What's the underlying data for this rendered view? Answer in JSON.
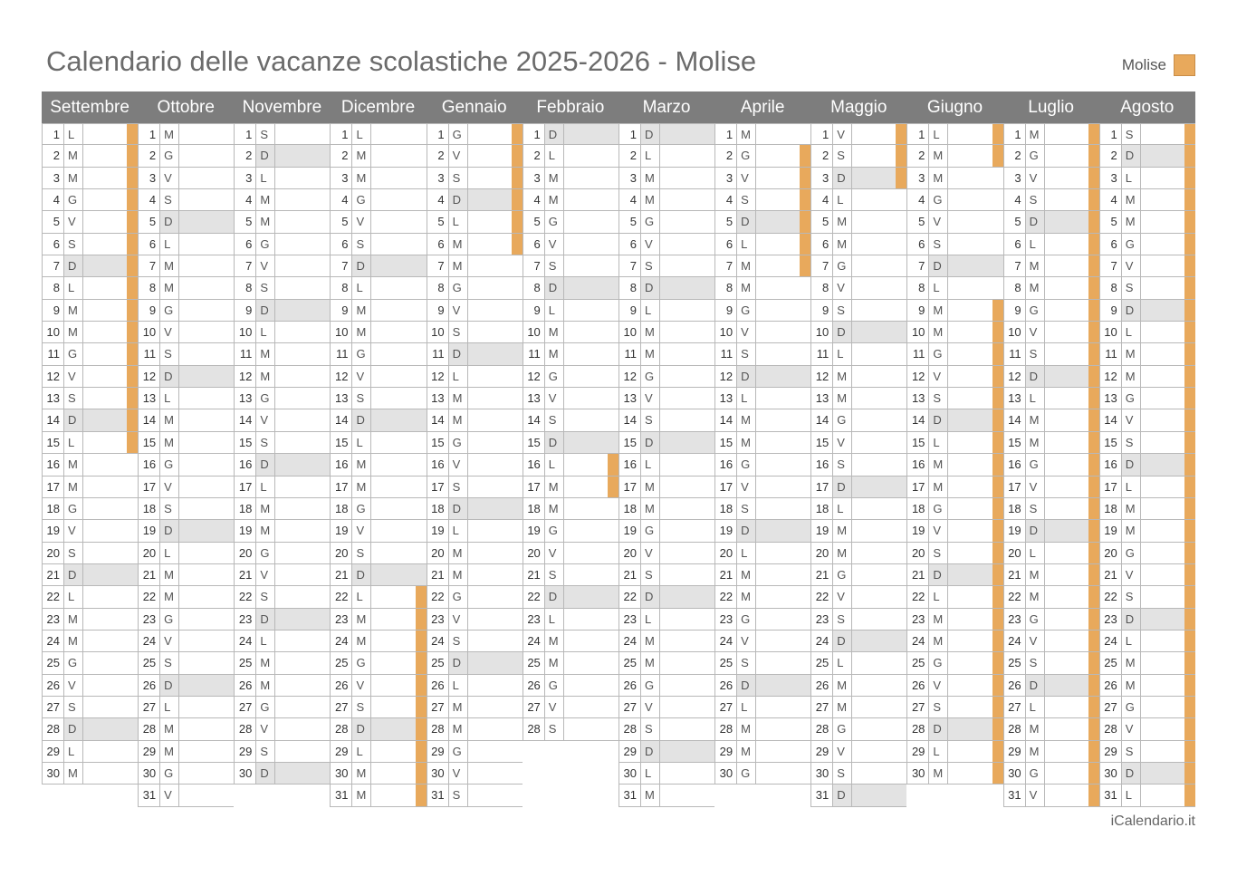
{
  "title": "Calendario delle vacanze scolastiche 2025-2026 - Molise",
  "legend": {
    "label": "Molise",
    "color": "#e8a95c"
  },
  "footer": "iCalendario.it",
  "months": [
    {
      "name": "Settembre",
      "days": 30,
      "start_weekday": 0,
      "vacation": [
        1,
        2,
        3,
        4,
        5,
        6,
        7,
        8,
        9,
        10,
        11,
        12,
        13,
        14,
        15
      ]
    },
    {
      "name": "Ottobre",
      "days": 31,
      "start_weekday": 2,
      "vacation": []
    },
    {
      "name": "Novembre",
      "days": 30,
      "start_weekday": 5,
      "vacation": []
    },
    {
      "name": "Dicembre",
      "days": 31,
      "start_weekday": 0,
      "vacation": [
        22,
        23,
        24,
        25,
        26,
        27,
        28,
        29,
        30,
        31
      ]
    },
    {
      "name": "Gennaio",
      "days": 31,
      "start_weekday": 3,
      "vacation": [
        1,
        2,
        3,
        4,
        5,
        6
      ]
    },
    {
      "name": "Febbraio",
      "days": 28,
      "start_weekday": 6,
      "vacation": [
        16,
        17
      ]
    },
    {
      "name": "Marzo",
      "days": 31,
      "start_weekday": 6,
      "vacation": []
    },
    {
      "name": "Aprile",
      "days": 30,
      "start_weekday": 2,
      "vacation": [
        2,
        3,
        4,
        5,
        6,
        7
      ]
    },
    {
      "name": "Maggio",
      "days": 31,
      "start_weekday": 4,
      "vacation": [
        1,
        2,
        3
      ]
    },
    {
      "name": "Giugno",
      "days": 30,
      "start_weekday": 0,
      "vacation": [
        1,
        2,
        9,
        10,
        11,
        12,
        13,
        14,
        15,
        16,
        17,
        18,
        19,
        20,
        21,
        22,
        23,
        24,
        25,
        26,
        27,
        28,
        29,
        30
      ]
    },
    {
      "name": "Luglio",
      "days": 31,
      "start_weekday": 2,
      "vacation": [
        1,
        2,
        3,
        4,
        5,
        6,
        7,
        8,
        9,
        10,
        11,
        12,
        13,
        14,
        15,
        16,
        17,
        18,
        19,
        20,
        21,
        22,
        23,
        24,
        25,
        26,
        27,
        28,
        29,
        30,
        31
      ]
    },
    {
      "name": "Agosto",
      "days": 31,
      "start_weekday": 5,
      "vacation": [
        1,
        2,
        3,
        4,
        5,
        6,
        7,
        8,
        9,
        10,
        11,
        12,
        13,
        14,
        15,
        16,
        17,
        18,
        19,
        20,
        21,
        22,
        23,
        24,
        25,
        26,
        27,
        28,
        29,
        30,
        31
      ]
    }
  ],
  "weekday_letters": [
    "L",
    "M",
    "M",
    "G",
    "V",
    "S",
    "D"
  ]
}
